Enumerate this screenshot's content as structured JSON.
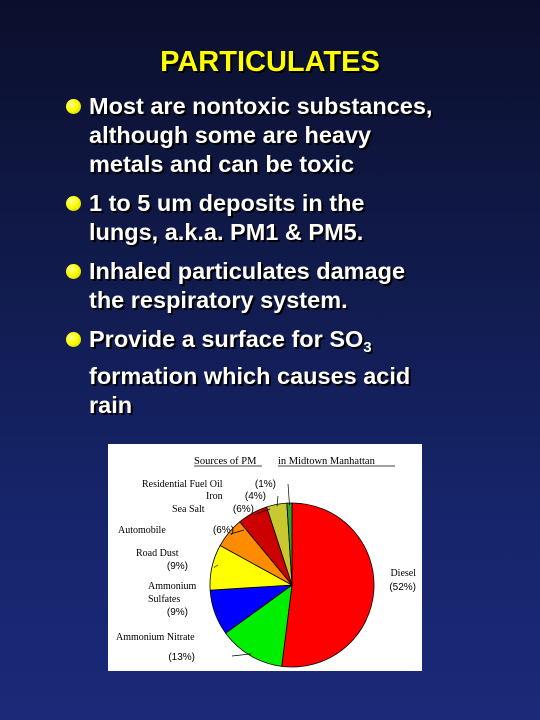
{
  "slide": {
    "title": "PARTICULATES",
    "bullets": [
      {
        "lines": [
          "Most are nontoxic substances,",
          "although some are heavy",
          "metals and can be toxic"
        ]
      },
      {
        "lines": [
          "1 to 5 um deposits in the",
          "lungs, a.k.a. PM1 & PM5."
        ]
      },
      {
        "lines": [
          "Inhaled particulates damage",
          "the respiratory system."
        ]
      },
      {
        "line1_prefix": "Provide a surface for SO",
        "line1_sub": "3",
        "lines_after": [
          "formation which causes acid",
          "rain"
        ]
      }
    ]
  },
  "chart_data": {
    "type": "pie",
    "title_part1": "Sources of PM",
    "title_part2": "in Midtown Manhattan",
    "slices": [
      {
        "name": "Diesel",
        "value_text": "(52%)",
        "value": 52,
        "color": "#ff0000"
      },
      {
        "name": "Ammonium Nitrate",
        "value_text": "(13%)",
        "value": 13,
        "color": "#00ee00"
      },
      {
        "name": "Ammonium Sulfates",
        "name_lines": [
          "Ammonium",
          "Sulfates"
        ],
        "value_text": "(9%)",
        "value": 9,
        "color": "#0000ff"
      },
      {
        "name": "Road Dust",
        "value_text": "(9%)",
        "value": 9,
        "color": "#ffff00"
      },
      {
        "name": "Automobile",
        "value_text": "(6%)",
        "value": 6,
        "color": "#ff8c00"
      },
      {
        "name": "Sea Salt",
        "value_text": "(6%)",
        "value": 6,
        "color": "#cc0000"
      },
      {
        "name": "Iron",
        "value_text": "(4%)",
        "value": 4,
        "color": "#c8c830"
      },
      {
        "name": "Residential Fuel Oil",
        "value_text": "(1%)",
        "value": 1,
        "color": "#30a030"
      }
    ]
  }
}
